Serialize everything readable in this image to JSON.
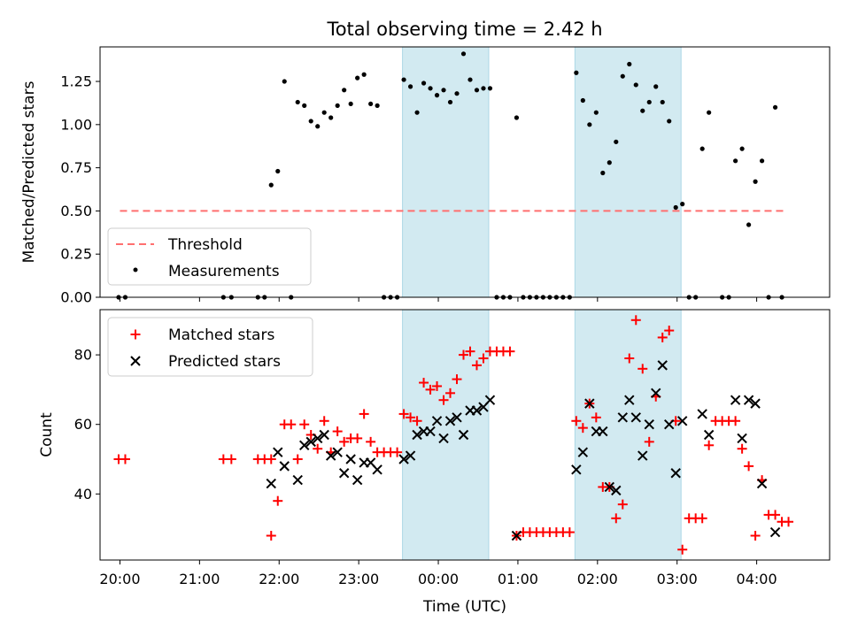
{
  "chart_data": [
    {
      "type": "scatter",
      "title": "Total observing time = 2.42 h",
      "ylabel": "Matched/Predicted stars",
      "xlabel": "",
      "xlim": [
        "19:45",
        "04:55"
      ],
      "ylim": [
        0,
        1.45
      ],
      "yticks": [
        "0.00",
        "0.25",
        "0.50",
        "0.75",
        "1.00",
        "1.25"
      ],
      "legend_position": "lower-left",
      "shaded_intervals": [
        [
          "23:33",
          "00:38"
        ],
        [
          "01:43",
          "03:03"
        ]
      ],
      "threshold": {
        "name": "Threshold",
        "value": 0.5,
        "x_range": [
          "20:00",
          "04:20"
        ],
        "color": "#ff6f6f"
      },
      "series": [
        {
          "name": "Measurements",
          "color": "#000000",
          "points": [
            [
              "19:59",
              0
            ],
            [
              "20:04",
              0
            ],
            [
              "21:18",
              0
            ],
            [
              "21:24",
              0
            ],
            [
              "21:44",
              0
            ],
            [
              "21:49",
              0
            ],
            [
              "22:09",
              0
            ],
            [
              "21:54",
              0.65
            ],
            [
              "21:59",
              0.73
            ],
            [
              "22:04",
              1.25
            ],
            [
              "22:14",
              1.13
            ],
            [
              "22:19",
              1.11
            ],
            [
              "22:24",
              1.02
            ],
            [
              "22:29",
              0.99
            ],
            [
              "22:34",
              1.07
            ],
            [
              "22:39",
              1.04
            ],
            [
              "22:44",
              1.11
            ],
            [
              "22:49",
              1.2
            ],
            [
              "22:54",
              1.12
            ],
            [
              "22:59",
              1.27
            ],
            [
              "23:04",
              1.29
            ],
            [
              "23:09",
              1.12
            ],
            [
              "23:14",
              1.11
            ],
            [
              "23:19",
              0
            ],
            [
              "23:24",
              0
            ],
            [
              "23:29",
              0
            ],
            [
              "23:34",
              1.26
            ],
            [
              "23:39",
              1.22
            ],
            [
              "23:44",
              1.07
            ],
            [
              "23:49",
              1.24
            ],
            [
              "23:54",
              1.21
            ],
            [
              "23:59",
              1.17
            ],
            [
              "00:04",
              1.2
            ],
            [
              "00:09",
              1.13
            ],
            [
              "00:14",
              1.18
            ],
            [
              "00:19",
              1.41
            ],
            [
              "00:24",
              1.26
            ],
            [
              "00:29",
              1.2
            ],
            [
              "00:34",
              1.21
            ],
            [
              "00:39",
              1.21
            ],
            [
              "00:44",
              0
            ],
            [
              "00:49",
              0
            ],
            [
              "00:54",
              0
            ],
            [
              "00:59",
              1.04
            ],
            [
              "01:04",
              0
            ],
            [
              "01:09",
              0
            ],
            [
              "01:14",
              0
            ],
            [
              "01:19",
              0
            ],
            [
              "01:24",
              0
            ],
            [
              "01:29",
              0
            ],
            [
              "01:34",
              0
            ],
            [
              "01:39",
              0
            ],
            [
              "01:44",
              1.3
            ],
            [
              "01:49",
              1.14
            ],
            [
              "01:54",
              1.0
            ],
            [
              "01:59",
              1.07
            ],
            [
              "02:04",
              0.72
            ],
            [
              "02:09",
              0.78
            ],
            [
              "02:14",
              0.9
            ],
            [
              "02:19",
              1.28
            ],
            [
              "02:24",
              1.35
            ],
            [
              "02:29",
              1.23
            ],
            [
              "02:34",
              1.08
            ],
            [
              "02:39",
              1.13
            ],
            [
              "02:44",
              1.22
            ],
            [
              "02:49",
              1.13
            ],
            [
              "02:54",
              1.02
            ],
            [
              "02:59",
              0.52
            ],
            [
              "03:04",
              0.54
            ],
            [
              "03:09",
              0
            ],
            [
              "03:14",
              0
            ],
            [
              "03:19",
              0.86
            ],
            [
              "03:24",
              1.07
            ],
            [
              "03:34",
              0
            ],
            [
              "03:39",
              0
            ],
            [
              "03:44",
              0.79
            ],
            [
              "03:49",
              0.86
            ],
            [
              "03:54",
              0.42
            ],
            [
              "03:59",
              0.67
            ],
            [
              "04:04",
              0.79
            ],
            [
              "04:09",
              0
            ],
            [
              "04:14",
              1.1
            ],
            [
              "04:19",
              0
            ]
          ]
        }
      ]
    },
    {
      "type": "scatter",
      "title": "",
      "xlabel": "Time (UTC)",
      "ylabel": "Count",
      "xlim": [
        "19:45",
        "04:55"
      ],
      "ylim": [
        21,
        93
      ],
      "yticks": [
        "40",
        "60",
        "80"
      ],
      "xticks": [
        "20:00",
        "21:00",
        "22:00",
        "23:00",
        "00:00",
        "01:00",
        "02:00",
        "03:00",
        "04:00"
      ],
      "legend_position": "upper-left",
      "shaded_intervals": [
        [
          "23:33",
          "00:38"
        ],
        [
          "01:43",
          "03:03"
        ]
      ],
      "series": [
        {
          "name": "Matched stars",
          "marker": "+",
          "color": "#ff0000",
          "points": [
            [
              "19:59",
              50
            ],
            [
              "20:04",
              50
            ],
            [
              "21:18",
              50
            ],
            [
              "21:24",
              50
            ],
            [
              "21:44",
              50
            ],
            [
              "21:49",
              50
            ],
            [
              "21:54",
              50
            ],
            [
              "21:54",
              28
            ],
            [
              "21:59",
              38
            ],
            [
              "22:04",
              60
            ],
            [
              "22:09",
              60
            ],
            [
              "22:14",
              50
            ],
            [
              "22:19",
              60
            ],
            [
              "22:24",
              57
            ],
            [
              "22:29",
              53
            ],
            [
              "22:34",
              61
            ],
            [
              "22:39",
              52
            ],
            [
              "22:44",
              58
            ],
            [
              "22:49",
              55
            ],
            [
              "22:54",
              56
            ],
            [
              "22:59",
              56
            ],
            [
              "23:04",
              63
            ],
            [
              "23:09",
              55
            ],
            [
              "23:14",
              52
            ],
            [
              "23:19",
              52
            ],
            [
              "23:24",
              52
            ],
            [
              "23:29",
              52
            ],
            [
              "23:34",
              63
            ],
            [
              "23:39",
              62
            ],
            [
              "23:44",
              61
            ],
            [
              "23:49",
              72
            ],
            [
              "23:54",
              70
            ],
            [
              "23:59",
              71
            ],
            [
              "00:04",
              67
            ],
            [
              "00:09",
              69
            ],
            [
              "00:14",
              73
            ],
            [
              "00:19",
              80
            ],
            [
              "00:24",
              81
            ],
            [
              "00:29",
              77
            ],
            [
              "00:34",
              79
            ],
            [
              "00:39",
              81
            ],
            [
              "00:44",
              81
            ],
            [
              "00:49",
              81
            ],
            [
              "00:54",
              81
            ],
            [
              "00:59",
              28
            ],
            [
              "01:04",
              29
            ],
            [
              "01:09",
              29
            ],
            [
              "01:14",
              29
            ],
            [
              "01:19",
              29
            ],
            [
              "01:24",
              29
            ],
            [
              "01:29",
              29
            ],
            [
              "01:34",
              29
            ],
            [
              "01:39",
              29
            ],
            [
              "01:44",
              61
            ],
            [
              "01:49",
              59
            ],
            [
              "01:54",
              66
            ],
            [
              "01:59",
              62
            ],
            [
              "02:04",
              42
            ],
            [
              "02:09",
              42
            ],
            [
              "02:14",
              33
            ],
            [
              "02:19",
              37
            ],
            [
              "02:24",
              79
            ],
            [
              "02:29",
              90
            ],
            [
              "02:34",
              76
            ],
            [
              "02:39",
              55
            ],
            [
              "02:44",
              68
            ],
            [
              "02:49",
              85
            ],
            [
              "02:54",
              87
            ],
            [
              "02:59",
              61
            ],
            [
              "03:04",
              24
            ],
            [
              "03:09",
              33
            ],
            [
              "03:14",
              33
            ],
            [
              "03:19",
              33
            ],
            [
              "03:24",
              54
            ],
            [
              "03:29",
              61
            ],
            [
              "03:34",
              61
            ],
            [
              "03:39",
              61
            ],
            [
              "03:44",
              61
            ],
            [
              "03:49",
              53
            ],
            [
              "03:54",
              48
            ],
            [
              "03:59",
              28
            ],
            [
              "04:04",
              44
            ],
            [
              "04:09",
              34
            ],
            [
              "04:14",
              34
            ],
            [
              "04:19",
              32
            ],
            [
              "04:24",
              32
            ]
          ]
        },
        {
          "name": "Predicted stars",
          "marker": "x",
          "color": "#000000",
          "points": [
            [
              "21:54",
              43
            ],
            [
              "21:59",
              52
            ],
            [
              "22:04",
              48
            ],
            [
              "22:14",
              44
            ],
            [
              "22:19",
              54
            ],
            [
              "22:24",
              55
            ],
            [
              "22:29",
              56
            ],
            [
              "22:34",
              57
            ],
            [
              "22:39",
              51
            ],
            [
              "22:44",
              52
            ],
            [
              "22:49",
              46
            ],
            [
              "22:54",
              50
            ],
            [
              "22:59",
              44
            ],
            [
              "23:04",
              49
            ],
            [
              "23:09",
              49
            ],
            [
              "23:14",
              47
            ],
            [
              "23:34",
              50
            ],
            [
              "23:39",
              51
            ],
            [
              "23:44",
              57
            ],
            [
              "23:49",
              58
            ],
            [
              "23:54",
              58
            ],
            [
              "23:59",
              61
            ],
            [
              "00:04",
              56
            ],
            [
              "00:09",
              61
            ],
            [
              "00:14",
              62
            ],
            [
              "00:19",
              57
            ],
            [
              "00:24",
              64
            ],
            [
              "00:29",
              64
            ],
            [
              "00:34",
              65
            ],
            [
              "00:39",
              67
            ],
            [
              "00:59",
              28
            ],
            [
              "01:44",
              47
            ],
            [
              "01:49",
              52
            ],
            [
              "01:54",
              66
            ],
            [
              "01:59",
              58
            ],
            [
              "02:04",
              58
            ],
            [
              "02:09",
              42
            ],
            [
              "02:14",
              41
            ],
            [
              "02:19",
              62
            ],
            [
              "02:24",
              67
            ],
            [
              "02:29",
              62
            ],
            [
              "02:34",
              51
            ],
            [
              "02:39",
              60
            ],
            [
              "02:44",
              69
            ],
            [
              "02:49",
              77
            ],
            [
              "02:54",
              60
            ],
            [
              "02:59",
              46
            ],
            [
              "03:04",
              61
            ],
            [
              "03:19",
              63
            ],
            [
              "03:24",
              57
            ],
            [
              "03:44",
              67
            ],
            [
              "03:49",
              56
            ],
            [
              "03:54",
              67
            ],
            [
              "03:59",
              66
            ],
            [
              "04:04",
              43
            ],
            [
              "04:14",
              29
            ]
          ]
        },
        {
          "name": "",
          "marker": "+",
          "color": "#ff0000",
          "points": []
        }
      ]
    }
  ],
  "colors": {
    "shade": "#add8e6",
    "matched": "#ff0000",
    "predicted": "#000000",
    "measurement": "#000000",
    "threshold": "#ff6f6f"
  }
}
